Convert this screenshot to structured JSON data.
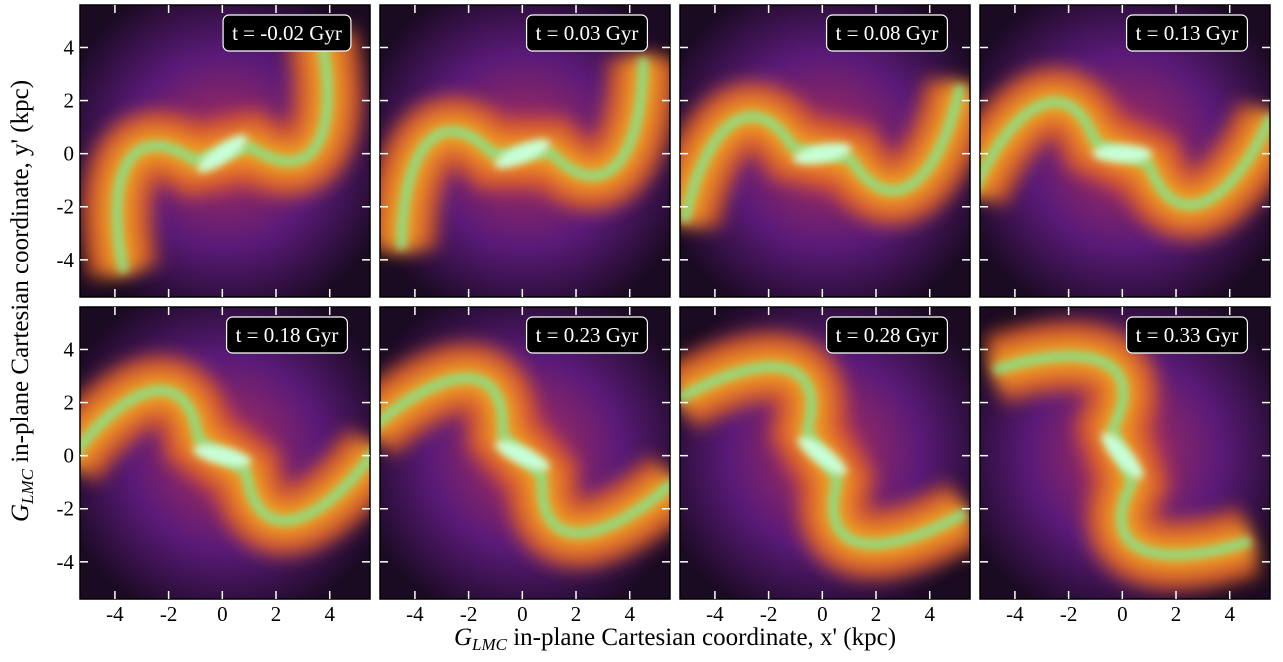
{
  "chart_data": {
    "type": "image-grid",
    "xlabel": {
      "symbol": "G",
      "subscript": "LMC",
      "text": " in-plane Cartesian coordinate, x' (kpc)"
    },
    "ylabel": {
      "symbol": "G",
      "subscript": "LMC",
      "text": " in-plane Cartesian coordinate, y' (kpc)"
    },
    "xlim": [
      -5.3,
      5.5
    ],
    "ylim": [
      -5.4,
      5.6
    ],
    "xticks": [
      -4,
      -2,
      0,
      2,
      4
    ],
    "yticks": [
      -4,
      -2,
      0,
      2,
      4
    ],
    "panels": [
      {
        "title": "t = -0.02 Gyr"
      },
      {
        "title": "t = 0.03 Gyr"
      },
      {
        "title": "t = 0.08 Gyr"
      },
      {
        "title": "t = 0.13 Gyr"
      },
      {
        "title": "t = 0.18 Gyr"
      },
      {
        "title": "t = 0.23 Gyr"
      },
      {
        "title": "t = 0.28 Gyr"
      },
      {
        "title": "t = 0.33 Gyr"
      }
    ]
  }
}
